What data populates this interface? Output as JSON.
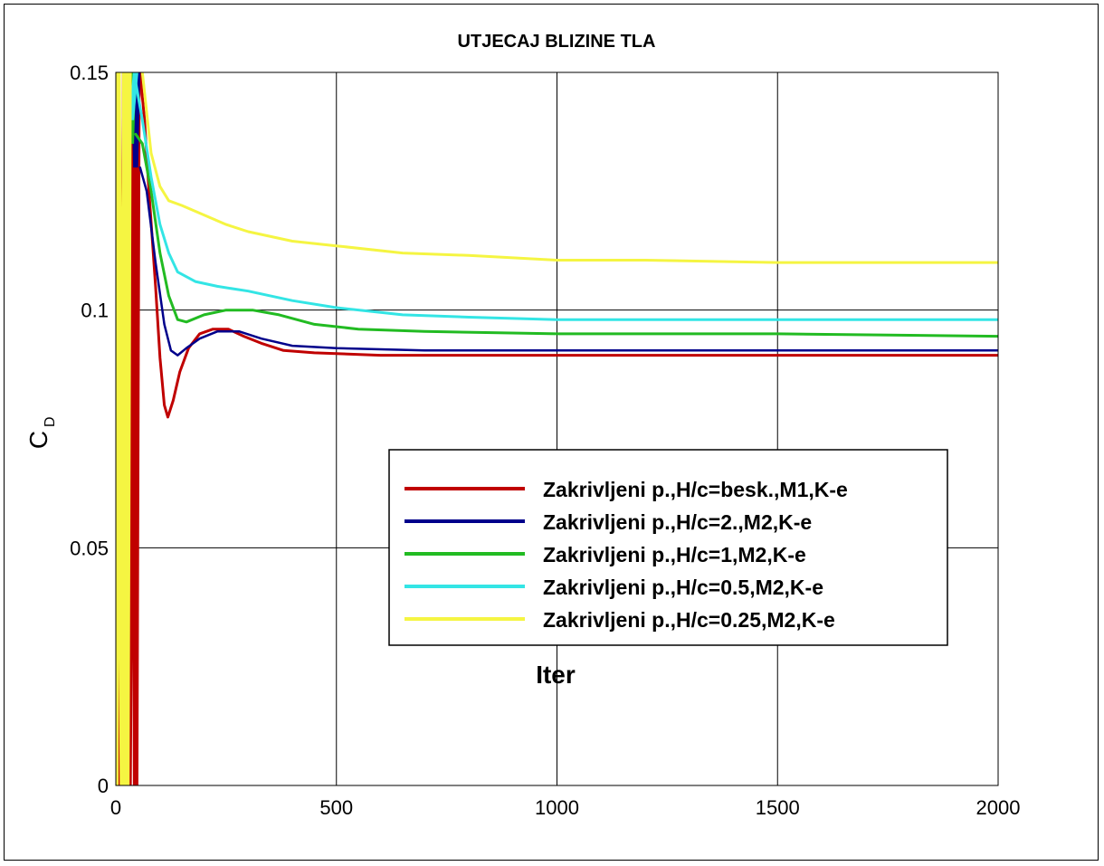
{
  "chart_data": {
    "type": "line",
    "title": "UTJECAJ BLIZINE TLA",
    "xlabel": "Iter",
    "ylabel_main": "C",
    "ylabel_sub": "D",
    "xlim": [
      0,
      2000
    ],
    "ylim": [
      0,
      0.15
    ],
    "xticks": [
      0,
      500,
      1000,
      1500,
      2000
    ],
    "xtick_labels": [
      "0",
      "500",
      "1000",
      "1500",
      "2000"
    ],
    "yticks": [
      0,
      0.05,
      0.1,
      0.15
    ],
    "ytick_labels": [
      "0",
      "0.05",
      "0.1",
      "0.15"
    ],
    "grid": true,
    "legend_position": "center-right",
    "series": [
      {
        "name": "Zakrivljeni p.,H/c=besk.,M1,K-e",
        "color": "#c00000",
        "stroke": 3,
        "points": [
          [
            55,
            0.15
          ],
          [
            65,
            0.14
          ],
          [
            75,
            0.125
          ],
          [
            90,
            0.105
          ],
          [
            100,
            0.09
          ],
          [
            110,
            0.08
          ],
          [
            118,
            0.0775
          ],
          [
            130,
            0.081
          ],
          [
            145,
            0.087
          ],
          [
            165,
            0.092
          ],
          [
            190,
            0.095
          ],
          [
            220,
            0.096
          ],
          [
            255,
            0.096
          ],
          [
            290,
            0.0945
          ],
          [
            330,
            0.093
          ],
          [
            380,
            0.0915
          ],
          [
            450,
            0.091
          ],
          [
            600,
            0.0905
          ],
          [
            1000,
            0.0905
          ],
          [
            1500,
            0.0905
          ],
          [
            2000,
            0.0905
          ]
        ],
        "spikes": [
          [
            0,
            0.15
          ],
          [
            10,
            0
          ],
          [
            20,
            0.15
          ],
          [
            30,
            0
          ],
          [
            40,
            0.15
          ],
          [
            45,
            0
          ],
          [
            50,
            0.15
          ]
        ]
      },
      {
        "name": "Zakrivljeni p.,H/c=2.,M2,K-e",
        "color": "#00008b",
        "stroke": 2.5,
        "points": [
          [
            55,
            0.13
          ],
          [
            70,
            0.125
          ],
          [
            90,
            0.11
          ],
          [
            110,
            0.097
          ],
          [
            125,
            0.0915
          ],
          [
            140,
            0.0905
          ],
          [
            160,
            0.092
          ],
          [
            190,
            0.094
          ],
          [
            230,
            0.0955
          ],
          [
            280,
            0.0955
          ],
          [
            330,
            0.094
          ],
          [
            400,
            0.0925
          ],
          [
            500,
            0.092
          ],
          [
            700,
            0.0915
          ],
          [
            1000,
            0.0915
          ],
          [
            1500,
            0.0915
          ],
          [
            2000,
            0.0915
          ]
        ],
        "spikes": [
          [
            40,
            0.15
          ],
          [
            45,
            0.13
          ],
          [
            50,
            0.15
          ]
        ]
      },
      {
        "name": "Zakrivljeni p.,H/c=1,M2,K-e",
        "color": "#22bb22",
        "stroke": 3,
        "points": [
          [
            45,
            0.137
          ],
          [
            60,
            0.135
          ],
          [
            80,
            0.125
          ],
          [
            100,
            0.112
          ],
          [
            120,
            0.103
          ],
          [
            140,
            0.098
          ],
          [
            160,
            0.0975
          ],
          [
            200,
            0.099
          ],
          [
            250,
            0.1
          ],
          [
            310,
            0.1
          ],
          [
            370,
            0.099
          ],
          [
            450,
            0.097
          ],
          [
            550,
            0.096
          ],
          [
            700,
            0.0955
          ],
          [
            1000,
            0.095
          ],
          [
            1500,
            0.095
          ],
          [
            2000,
            0.0945
          ]
        ],
        "spikes": [
          [
            30,
            0.15
          ],
          [
            35,
            0.135
          ],
          [
            40,
            0.15
          ]
        ]
      },
      {
        "name": "Zakrivljeni p.,H/c=0.5,M2,K-e",
        "color": "#33e5e5",
        "stroke": 3,
        "points": [
          [
            45,
            0.148
          ],
          [
            60,
            0.14
          ],
          [
            80,
            0.128
          ],
          [
            100,
            0.118
          ],
          [
            120,
            0.112
          ],
          [
            140,
            0.108
          ],
          [
            180,
            0.106
          ],
          [
            230,
            0.105
          ],
          [
            300,
            0.104
          ],
          [
            400,
            0.102
          ],
          [
            500,
            0.1005
          ],
          [
            650,
            0.099
          ],
          [
            800,
            0.0985
          ],
          [
            1000,
            0.098
          ],
          [
            1500,
            0.098
          ],
          [
            2000,
            0.098
          ]
        ],
        "spikes": [
          [
            25,
            0.15
          ],
          [
            35,
            0.14
          ],
          [
            45,
            0.15
          ]
        ]
      },
      {
        "name": "Zakrivljeni p.,H/c=0.25,M2,K-e",
        "color": "#f5f542",
        "stroke": 3,
        "points": [
          [
            60,
            0.15
          ],
          [
            80,
            0.133
          ],
          [
            100,
            0.126
          ],
          [
            120,
            0.123
          ],
          [
            150,
            0.122
          ],
          [
            200,
            0.12
          ],
          [
            250,
            0.118
          ],
          [
            300,
            0.1165
          ],
          [
            400,
            0.1145
          ],
          [
            500,
            0.1135
          ],
          [
            650,
            0.112
          ],
          [
            800,
            0.1115
          ],
          [
            1000,
            0.1105
          ],
          [
            1200,
            0.1105
          ],
          [
            1500,
            0.11
          ],
          [
            2000,
            0.11
          ]
        ],
        "spikes": [
          [
            0,
            0
          ],
          [
            5,
            0.15
          ],
          [
            15,
            0
          ],
          [
            20,
            0.15
          ],
          [
            25,
            0
          ],
          [
            30,
            0.15
          ]
        ]
      }
    ]
  }
}
